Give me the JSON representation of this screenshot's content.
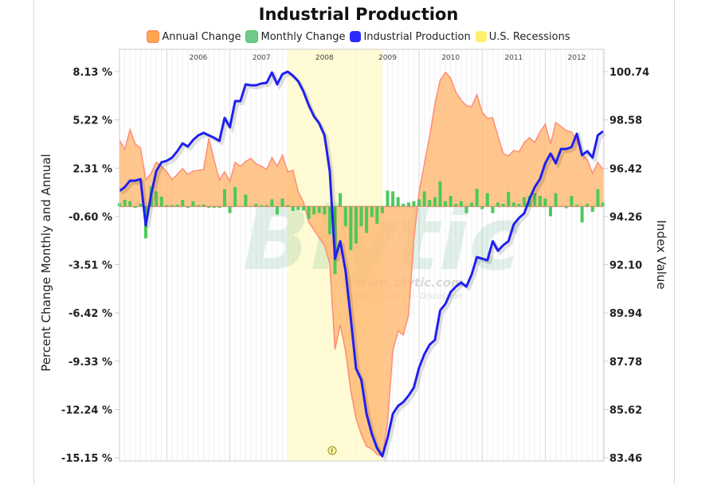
{
  "chart_data": {
    "type": "line",
    "title": "Industrial Production",
    "legend": [
      {
        "name": "Annual Change",
        "color": "#ffa64d"
      },
      {
        "name": "Monthly Change",
        "color": "#5cc86a"
      },
      {
        "name": "Industrial Production",
        "color": "#1f1ff0"
      },
      {
        "name": "U.S. Recessions",
        "color": "#fff06a"
      }
    ],
    "legend_placement": "top",
    "ylabel_left": "Percent Change Monthly and Annual",
    "ylabel_right": "Index Value",
    "left_ticks": [
      "8.13 %",
      "5.22 %",
      "2.31 %",
      "-0.60 %",
      "-3.51 %",
      "-6.42 %",
      "-9.33 %",
      "-12.24 %",
      "-15.15 %"
    ],
    "right_ticks": [
      "100.74",
      "98.58",
      "96.42",
      "94.26",
      "92.10",
      "89.94",
      "87.78",
      "85.62",
      "83.46"
    ],
    "ylim_left": [
      -15.15,
      8.13
    ],
    "ylim_right": [
      83.46,
      100.74
    ],
    "x_ticks": [
      "2006",
      "2007",
      "2008",
      "2009",
      "2010",
      "2011",
      "2012"
    ],
    "xlim": [
      "2005-04",
      "2012-12"
    ],
    "grid": "vertical monthly",
    "recession": {
      "start": "2007-12",
      "end": "2009-06"
    },
    "x": [
      "2005-04",
      "2005-05",
      "2005-06",
      "2005-07",
      "2005-08",
      "2005-09",
      "2005-10",
      "2005-11",
      "2005-12",
      "2006-01",
      "2006-02",
      "2006-03",
      "2006-04",
      "2006-05",
      "2006-06",
      "2006-07",
      "2006-08",
      "2006-09",
      "2006-10",
      "2006-11",
      "2006-12",
      "2007-01",
      "2007-02",
      "2007-03",
      "2007-04",
      "2007-05",
      "2007-06",
      "2007-07",
      "2007-08",
      "2007-09",
      "2007-10",
      "2007-11",
      "2007-12",
      "2008-01",
      "2008-02",
      "2008-03",
      "2008-04",
      "2008-05",
      "2008-06",
      "2008-07",
      "2008-08",
      "2008-09",
      "2008-10",
      "2008-11",
      "2008-12",
      "2009-01",
      "2009-02",
      "2009-03",
      "2009-04",
      "2009-05",
      "2009-06",
      "2009-07",
      "2009-08",
      "2009-09",
      "2009-10",
      "2009-11",
      "2009-12",
      "2010-01",
      "2010-02",
      "2010-03",
      "2010-04",
      "2010-05",
      "2010-06",
      "2010-07",
      "2010-08",
      "2010-09",
      "2010-10",
      "2010-11",
      "2010-12",
      "2011-01",
      "2011-02",
      "2011-03",
      "2011-04",
      "2011-05",
      "2011-06",
      "2011-07",
      "2011-08",
      "2011-09",
      "2011-10",
      "2011-11",
      "2011-12",
      "2012-01",
      "2012-02",
      "2012-03",
      "2012-04",
      "2012-05",
      "2012-06",
      "2012-07",
      "2012-08",
      "2012-09",
      "2012-10",
      "2012-11",
      "2012-12"
    ],
    "series": [
      {
        "name": "Industrial Production",
        "axis": "right",
        "values": [
          95.4,
          95.57,
          95.86,
          95.86,
          95.93,
          93.86,
          95.22,
          96.29,
          96.68,
          96.75,
          96.89,
          97.18,
          97.53,
          97.39,
          97.68,
          97.89,
          98.0,
          97.89,
          97.78,
          97.64,
          98.67,
          98.25,
          99.42,
          99.42,
          100.17,
          100.13,
          100.13,
          100.21,
          100.24,
          100.7,
          100.17,
          100.63,
          100.74,
          100.56,
          100.31,
          99.85,
          99.24,
          98.74,
          98.42,
          97.89,
          96.29,
          92.37,
          93.15,
          91.83,
          89.7,
          87.45,
          86.95,
          85.42,
          84.53,
          83.89,
          83.53,
          84.35,
          85.42,
          85.78,
          85.95,
          86.24,
          86.6,
          87.49,
          88.09,
          88.52,
          88.73,
          90.05,
          90.34,
          90.87,
          91.12,
          91.3,
          91.12,
          91.66,
          92.44,
          92.37,
          92.3,
          93.15,
          92.72,
          92.97,
          93.15,
          93.9,
          94.19,
          94.4,
          95.04,
          95.57,
          95.93,
          96.64,
          97.07,
          96.64,
          97.28,
          97.28,
          97.36,
          97.96,
          97.0,
          97.18,
          96.89,
          97.89,
          98.07
        ]
      },
      {
        "name": "Annual Change",
        "axis": "left",
        "values": [
          4.01,
          3.43,
          4.63,
          3.77,
          3.53,
          1.61,
          1.99,
          2.66,
          2.42,
          2.09,
          1.61,
          1.94,
          2.28,
          1.94,
          2.14,
          2.18,
          2.23,
          4.1,
          2.81,
          1.61,
          2.09,
          1.51,
          2.66,
          2.42,
          2.71,
          2.9,
          2.57,
          2.42,
          2.23,
          2.95,
          2.42,
          3.1,
          2.09,
          2.18,
          0.89,
          0.26,
          -0.94,
          -1.42,
          -1.9,
          -2.33,
          -3.43,
          -8.62,
          -7.13,
          -8.71,
          -11.11,
          -12.79,
          -13.75,
          -14.47,
          -14.62,
          -14.95,
          -15.05,
          -13.03,
          -8.71,
          -7.51,
          -7.75,
          -6.55,
          -1.99,
          0.89,
          2.57,
          4.25,
          6.17,
          7.61,
          8.09,
          7.75,
          6.89,
          6.41,
          6.07,
          6.02,
          6.74,
          5.69,
          5.31,
          5.35,
          4.25,
          3.19,
          3.05,
          3.38,
          3.29,
          3.86,
          4.15,
          3.86,
          4.49,
          4.97,
          3.77,
          5.06,
          4.82,
          4.58,
          4.49,
          4.01,
          3.14,
          2.81,
          1.99,
          2.66,
          2.23
        ]
      },
      {
        "name": "Monthly Change",
        "axis": "left",
        "values": [
          0.2,
          0.4,
          0.32,
          -0.08,
          0.16,
          -1.92,
          1.2,
          0.91,
          0.59,
          0.08,
          0.08,
          0.11,
          0.4,
          -0.08,
          0.32,
          0.08,
          0.11,
          -0.08,
          -0.08,
          -0.08,
          1.04,
          -0.4,
          1.17,
          0.0,
          0.72,
          0.0,
          0.16,
          0.08,
          0.08,
          0.43,
          -0.48,
          0.48,
          0.08,
          -0.27,
          -0.21,
          -0.24,
          -0.75,
          -0.48,
          -0.4,
          -0.48,
          -1.68,
          -4.08,
          0.8,
          -1.2,
          -2.64,
          -2.24,
          -1.2,
          -1.6,
          -0.64,
          -1.04,
          -0.4,
          0.96,
          0.91,
          0.56,
          0.16,
          0.24,
          0.32,
          0.43,
          0.91,
          0.4,
          0.56,
          1.52,
          0.32,
          0.64,
          0.16,
          0.32,
          -0.4,
          0.24,
          1.07,
          -0.16,
          0.8,
          -0.4,
          0.24,
          0.16,
          0.88,
          0.24,
          0.16,
          0.56,
          0.64,
          0.8,
          0.64,
          0.48,
          -0.59,
          0.8,
          0.0,
          -0.1,
          0.64,
          0.1,
          -0.96,
          0.16,
          -0.32,
          1.04,
          0.24
        ]
      }
    ]
  },
  "watermark": {
    "brand": "Blytic",
    "url": "www.blytic.com",
    "tagline": "Data - Analysis - Discussion"
  },
  "colors": {
    "annual_fill": "#ffb870",
    "annual_stroke": "#ff8c78",
    "monthly": "#4cc95a",
    "index_line": "#1f1ff0",
    "recession": "#fffacd"
  }
}
